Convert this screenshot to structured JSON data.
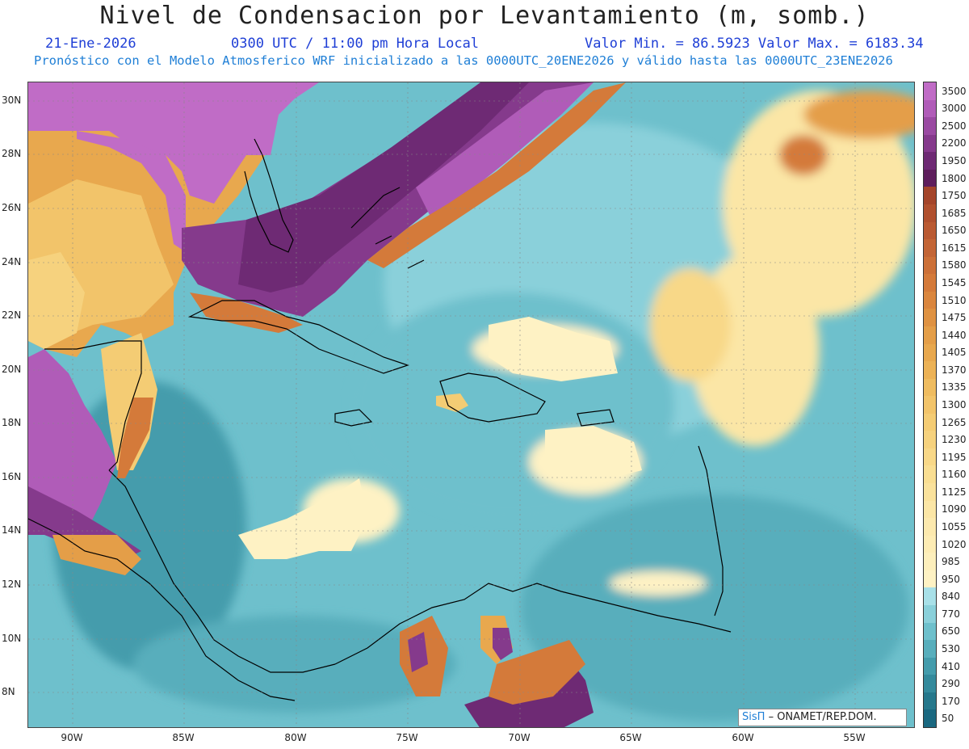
{
  "title": "Nivel de Condensacion por Levantamiento (m, somb.)",
  "date": "21-Ene-2026",
  "time": "0300 UTC / 11:00 pm Hora Local",
  "minmax": "Valor Min. = 86.5923  Valor Max. = 6183.34",
  "forecast": "Pronóstico con el Modelo Atmosferico WRF inicializado a las 0000UTC_20ENE2026 y válido hasta las  0000UTC_23ENE2026",
  "credit": {
    "brand": "SisΠ",
    "org": "– ONAMET/REP.DOM."
  },
  "lat_labels": [
    "30N",
    "28N",
    "26N",
    "24N",
    "22N",
    "20N",
    "18N",
    "16N",
    "14N",
    "12N",
    "10N",
    "8N"
  ],
  "lon_labels": [
    "90W",
    "85W",
    "80W",
    "75W",
    "70W",
    "65W",
    "60W",
    "55W"
  ],
  "colorbar": {
    "labels": [
      "3500",
      "3000",
      "2500",
      "2200",
      "1950",
      "1800",
      "1750",
      "1685",
      "1650",
      "1615",
      "1580",
      "1545",
      "1510",
      "1475",
      "1440",
      "1405",
      "1370",
      "1335",
      "1300",
      "1265",
      "1230",
      "1195",
      "1160",
      "1125",
      "1090",
      "1055",
      "1020",
      "985",
      "950",
      "840",
      "770",
      "650",
      "530",
      "410",
      "290",
      "170",
      "50"
    ],
    "colors": [
      "#c06cc6",
      "#b05cb8",
      "#9a4aa2",
      "#853a8c",
      "#6e2a74",
      "#5e1e5c",
      "#a4452a",
      "#b0502e",
      "#ba5a32",
      "#c36536",
      "#cc7038",
      "#d47a3a",
      "#da863e",
      "#df9242",
      "#e49e48",
      "#e8a84e",
      "#ecb256",
      "#efbc60",
      "#f2c46a",
      "#f4cc74",
      "#f6d27e",
      "#f8d888",
      "#f9de92",
      "#fae29c",
      "#fbe6a6",
      "#fce9ae",
      "#fdecb4",
      "#fdefbc",
      "#fef2c4",
      "#a8e0e8",
      "#8ad0da",
      "#6ec0cc",
      "#58aebc",
      "#449cac",
      "#348a9c",
      "#26788c",
      "#1a6880"
    ]
  },
  "icons": {
    "credit_logo": "pi-symbol"
  }
}
